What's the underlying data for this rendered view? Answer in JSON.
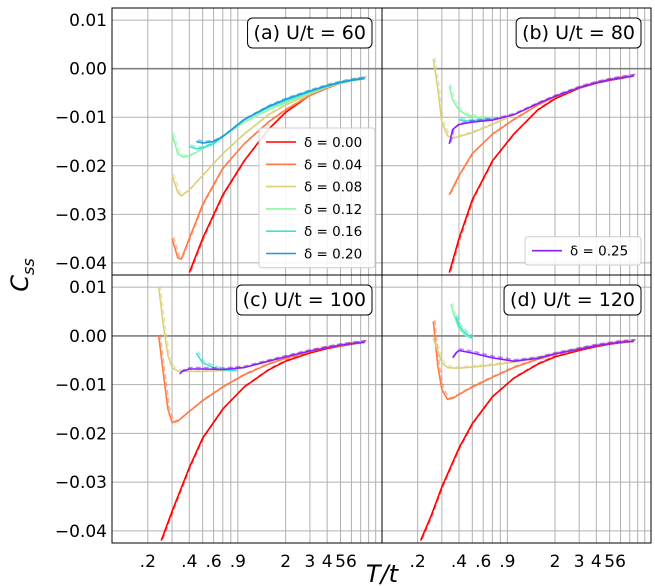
{
  "chart_data": {
    "type": "line",
    "title": "",
    "xlabel": "T/t",
    "ylabel": "C_ss",
    "x_scale": "log",
    "xlim": [
      0.11,
      10.0
    ],
    "ylim": [
      -0.0425,
      0.0125
    ],
    "x_tick_labels": [
      ".2",
      ".4",
      ".6",
      ".9",
      "2",
      "3",
      "4",
      "5",
      "6"
    ],
    "x_tick_values": [
      0.2,
      0.4,
      0.6,
      0.9,
      2,
      3,
      4,
      5,
      6
    ],
    "y_tick_labels": [
      "0.01",
      "0.00",
      "−0.01",
      "−0.02",
      "−0.03",
      "−0.04"
    ],
    "y_tick_values": [
      0.01,
      0.0,
      -0.01,
      -0.02,
      -0.03,
      -0.04
    ],
    "grid": true,
    "colors": {
      "0.00": "#ff0000",
      "0.04": "#ff7a45",
      "0.08": "#dccf7b",
      "0.12": "#8ef5a8",
      "0.16": "#3fe2d2",
      "0.20": "#1e9be0",
      "0.25": "#8a1eff"
    },
    "panels": [
      {
        "id": "a",
        "title": "(a) U/t = 60",
        "legend_position": "center-right",
        "series": [
          {
            "name": "δ = 0.00",
            "key": "0.00",
            "x": [
              0.4,
              0.5,
              0.7,
              1.0,
              1.5,
              2.0,
              3.0,
              4.0,
              5.0,
              6.0,
              7.5
            ],
            "y": [
              -0.042,
              -0.035,
              -0.026,
              -0.019,
              -0.0125,
              -0.009,
              -0.0055,
              -0.004,
              -0.003,
              -0.0025,
              -0.002
            ]
          },
          {
            "name": "δ = 0.04",
            "key": "0.04",
            "x": [
              0.3,
              0.33,
              0.35,
              0.4,
              0.5,
              0.7,
              1.0,
              1.5,
              2.0,
              3.0,
              4.0,
              5.0,
              6.0,
              7.5
            ],
            "y": [
              -0.035,
              -0.039,
              -0.0392,
              -0.035,
              -0.028,
              -0.0205,
              -0.0155,
              -0.011,
              -0.0085,
              -0.0055,
              -0.004,
              -0.003,
              -0.0025,
              -0.002
            ]
          },
          {
            "name": "δ = 0.08",
            "key": "0.08",
            "x": [
              0.3,
              0.33,
              0.35,
              0.4,
              0.5,
              0.7,
              1.0,
              1.5,
              2.0,
              3.0,
              4.0,
              5.0,
              6.0,
              7.5
            ],
            "y": [
              -0.022,
              -0.0255,
              -0.0262,
              -0.025,
              -0.022,
              -0.0175,
              -0.0135,
              -0.0095,
              -0.0075,
              -0.0052,
              -0.0038,
              -0.003,
              -0.0025,
              -0.002
            ]
          },
          {
            "name": "δ = 0.12",
            "key": "0.12",
            "x": [
              0.3,
              0.33,
              0.36,
              0.4,
              0.5,
              0.7,
              1.0,
              1.5,
              2.0,
              3.0,
              4.0,
              5.0,
              6.0,
              7.5
            ],
            "y": [
              -0.0135,
              -0.0175,
              -0.0182,
              -0.018,
              -0.0165,
              -0.014,
              -0.011,
              -0.0085,
              -0.007,
              -0.005,
              -0.0037,
              -0.003,
              -0.0025,
              -0.002
            ]
          },
          {
            "name": "δ = 0.16",
            "key": "0.16",
            "x": [
              0.4,
              0.45,
              0.5,
              0.6,
              0.7,
              1.0,
              1.5,
              2.0,
              3.0,
              4.0,
              5.0,
              6.0,
              7.5
            ],
            "y": [
              -0.016,
              -0.0165,
              -0.0163,
              -0.0155,
              -0.014,
              -0.0105,
              -0.008,
              -0.0066,
              -0.0048,
              -0.0036,
              -0.0029,
              -0.0024,
              -0.002
            ]
          },
          {
            "name": "δ = 0.20",
            "key": "0.20",
            "x": [
              0.45,
              0.5,
              0.6,
              0.7,
              1.0,
              1.5,
              2.0,
              3.0,
              4.0,
              5.0,
              6.0,
              7.5
            ],
            "y": [
              -0.015,
              -0.0153,
              -0.015,
              -0.014,
              -0.0105,
              -0.0078,
              -0.0063,
              -0.0046,
              -0.0035,
              -0.0028,
              -0.0024,
              -0.002
            ]
          }
        ]
      },
      {
        "id": "b",
        "title": "(b) U/t = 80",
        "legend_position": "lower-right",
        "series": [
          {
            "name": "",
            "key": "0.00",
            "x": [
              0.34,
              0.4,
              0.5,
              0.7,
              1.0,
              1.5,
              2.0,
              3.0,
              4.0,
              5.0,
              6.0,
              7.5
            ],
            "y": [
              -0.042,
              -0.035,
              -0.027,
              -0.019,
              -0.0135,
              -0.0085,
              -0.0062,
              -0.004,
              -0.003,
              -0.0024,
              -0.002,
              -0.0015
            ]
          },
          {
            "name": "",
            "key": "0.04",
            "x": [
              0.34,
              0.4,
              0.5,
              0.7,
              1.0,
              1.5,
              2.0,
              3.0,
              4.0,
              5.0,
              6.0,
              7.5
            ],
            "y": [
              -0.026,
              -0.022,
              -0.0175,
              -0.0135,
              -0.0105,
              -0.0075,
              -0.0058,
              -0.0039,
              -0.0029,
              -0.0023,
              -0.0019,
              -0.0015
            ]
          },
          {
            "name": "",
            "key": "0.08",
            "x": [
              0.26,
              0.28,
              0.3,
              0.33,
              0.36,
              0.4,
              0.5,
              0.7,
              1.0,
              1.5,
              2.0,
              3.0,
              4.0,
              5.0,
              6.0,
              7.5
            ],
            "y": [
              0.002,
              -0.004,
              -0.011,
              -0.0138,
              -0.0143,
              -0.014,
              -0.0132,
              -0.0115,
              -0.0095,
              -0.0072,
              -0.0057,
              -0.0039,
              -0.0029,
              -0.0023,
              -0.0019,
              -0.0015
            ]
          },
          {
            "name": "",
            "key": "0.12",
            "x": [
              0.34,
              0.36,
              0.4,
              0.45,
              0.5,
              0.6,
              0.7
            ],
            "y": [
              -0.0035,
              -0.0065,
              -0.0085,
              -0.0095,
              -0.0098,
              -0.0102,
              -0.0104
            ]
          },
          {
            "name": "",
            "key": "0.16",
            "x": [
              0.4,
              0.45,
              0.5,
              0.6,
              0.7
            ],
            "y": [
              -0.0105,
              -0.0108,
              -0.0107,
              -0.0105,
              -0.0104
            ]
          },
          {
            "name": "δ = 0.25",
            "key": "0.25",
            "x": [
              0.34,
              0.36,
              0.4,
              0.5,
              0.7,
              1.0,
              1.5,
              2.0,
              3.0,
              4.0,
              5.0,
              6.0,
              7.5
            ],
            "y": [
              -0.0155,
              -0.0125,
              -0.0115,
              -0.011,
              -0.0106,
              -0.0095,
              -0.0072,
              -0.0057,
              -0.0039,
              -0.0029,
              -0.0023,
              -0.0019,
              -0.0015
            ]
          }
        ]
      },
      {
        "id": "c",
        "title": "(c) U/t = 100",
        "legend_position": "none",
        "series": [
          {
            "name": "",
            "key": "0.00",
            "x": [
              0.25,
              0.3,
              0.4,
              0.5,
              0.7,
              1.0,
              1.5,
              2.0,
              3.0,
              4.0,
              5.0,
              6.0,
              7.5
            ],
            "y": [
              -0.042,
              -0.036,
              -0.027,
              -0.021,
              -0.015,
              -0.0105,
              -0.007,
              -0.0052,
              -0.0035,
              -0.0026,
              -0.0021,
              -0.0017,
              -0.0013
            ]
          },
          {
            "name": "",
            "key": "0.04",
            "x": [
              0.24,
              0.26,
              0.28,
              0.3,
              0.33,
              0.4,
              0.5,
              0.7,
              1.0,
              1.5,
              2.0,
              3.0,
              4.0,
              5.0,
              6.0,
              7.5
            ],
            "y": [
              0.0,
              -0.008,
              -0.015,
              -0.0178,
              -0.0175,
              -0.0155,
              -0.0133,
              -0.0105,
              -0.008,
              -0.0058,
              -0.0046,
              -0.0032,
              -0.0024,
              -0.002,
              -0.0016,
              -0.0013
            ]
          },
          {
            "name": "",
            "key": "0.08",
            "x": [
              0.24,
              0.26,
              0.28,
              0.3,
              0.33,
              0.4,
              0.5,
              0.7,
              1.0,
              1.5,
              2.0,
              3.0,
              4.0,
              5.0,
              6.0,
              7.5
            ],
            "y": [
              0.01,
              0.002,
              -0.004,
              -0.0065,
              -0.0072,
              -0.0073,
              -0.0073,
              -0.0071,
              -0.0065,
              -0.0052,
              -0.0043,
              -0.0031,
              -0.0024,
              -0.0019,
              -0.0016,
              -0.0013
            ]
          },
          {
            "name": "",
            "key": "0.16",
            "x": [
              0.45,
              0.5,
              0.6,
              0.7,
              0.9
            ],
            "y": [
              -0.0035,
              -0.0055,
              -0.0065,
              -0.007,
              -0.0071
            ]
          },
          {
            "name": "",
            "key": "0.25",
            "x": [
              0.34,
              0.36,
              0.4,
              0.5,
              0.7,
              1.0,
              1.5,
              2.0,
              3.0,
              4.0,
              5.0,
              6.0,
              7.5
            ],
            "y": [
              -0.0078,
              -0.0072,
              -0.0068,
              -0.0068,
              -0.0069,
              -0.0065,
              -0.0052,
              -0.0043,
              -0.0031,
              -0.0024,
              -0.0019,
              -0.0016,
              -0.0013
            ]
          }
        ]
      },
      {
        "id": "d",
        "title": "(d) U/t = 120",
        "legend_position": "none",
        "series": [
          {
            "name": "",
            "key": "0.00",
            "x": [
              0.21,
              0.25,
              0.3,
              0.4,
              0.5,
              0.7,
              1.0,
              1.5,
              2.0,
              3.0,
              4.0,
              5.0,
              6.0,
              7.5
            ],
            "y": [
              -0.042,
              -0.037,
              -0.031,
              -0.023,
              -0.018,
              -0.0125,
              -0.0087,
              -0.0058,
              -0.0043,
              -0.003,
              -0.0022,
              -0.0017,
              -0.0014,
              -0.0011
            ]
          },
          {
            "name": "",
            "key": "0.04",
            "x": [
              0.26,
              0.28,
              0.3,
              0.33,
              0.36,
              0.4,
              0.5,
              0.7,
              1.0,
              1.5,
              2.0,
              3.0,
              4.0,
              5.0,
              6.0,
              7.5
            ],
            "y": [
              0.003,
              -0.006,
              -0.011,
              -0.013,
              -0.0128,
              -0.012,
              -0.0105,
              -0.0085,
              -0.0065,
              -0.0048,
              -0.0038,
              -0.0027,
              -0.002,
              -0.0016,
              -0.0013,
              -0.0011
            ]
          },
          {
            "name": "",
            "key": "0.08",
            "x": [
              0.26,
              0.28,
              0.3,
              0.33,
              0.36,
              0.4,
              0.5,
              0.7,
              1.0,
              1.5,
              2.0,
              3.0,
              4.0,
              5.0,
              6.0,
              7.5
            ],
            "y": [
              -0.0005,
              -0.003,
              -0.0055,
              -0.0065,
              -0.0066,
              -0.0066,
              -0.0064,
              -0.006,
              -0.0054,
              -0.0045,
              -0.0037,
              -0.0027,
              -0.002,
              -0.0016,
              -0.0013,
              -0.0011
            ]
          },
          {
            "name": "",
            "key": "0.12",
            "x": [
              0.35,
              0.37,
              0.4,
              0.45,
              0.5
            ],
            "y": [
              0.0065,
              0.004,
              0.0015,
              0.0,
              -0.0005
            ]
          },
          {
            "name": "",
            "key": "0.16",
            "x": [
              0.38,
              0.4,
              0.45,
              0.5
            ],
            "y": [
              0.004,
              0.002,
              0.0005,
              -0.0005
            ]
          },
          {
            "name": "",
            "key": "0.25",
            "x": [
              0.36,
              0.38,
              0.4,
              0.5,
              0.7,
              1.0,
              1.5,
              2.0,
              3.0,
              4.0,
              5.0,
              6.0,
              7.5
            ],
            "y": [
              -0.0045,
              -0.0035,
              -0.003,
              -0.0035,
              -0.0045,
              -0.0052,
              -0.0046,
              -0.0037,
              -0.0027,
              -0.002,
              -0.0016,
              -0.0013,
              -0.0011
            ]
          }
        ]
      }
    ]
  }
}
